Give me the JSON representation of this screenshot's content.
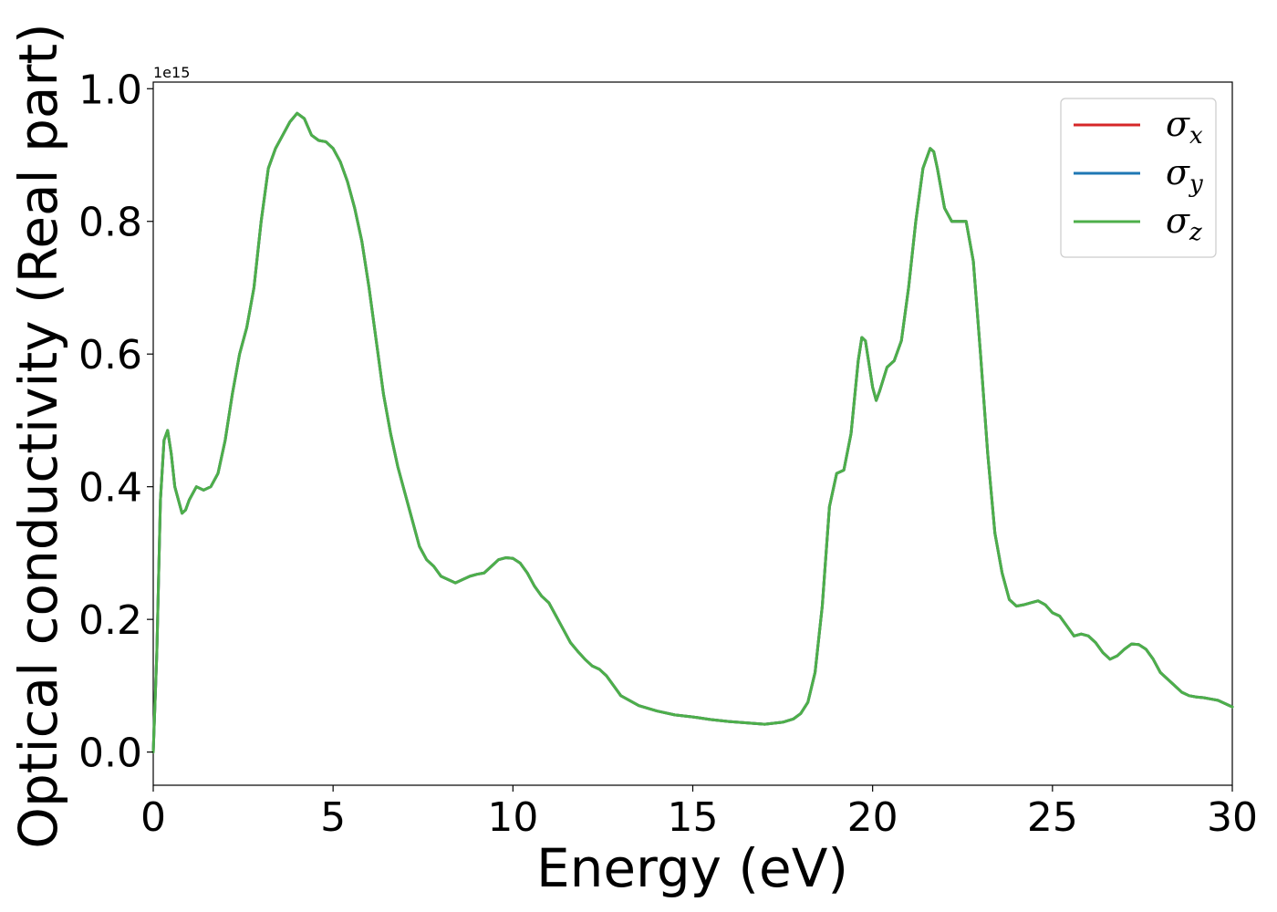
{
  "chart_data": {
    "type": "line",
    "xlabel": "Energy (eV)",
    "ylabel": "Optical conductivity (Real part)",
    "y_offset_label": "1e15",
    "xlim": [
      0,
      30
    ],
    "ylim": [
      -0.05,
      1.01
    ],
    "x_ticks": [
      0,
      5,
      10,
      15,
      20,
      25,
      30
    ],
    "x_tick_labels": [
      "0",
      "5",
      "10",
      "15",
      "20",
      "25",
      "30"
    ],
    "y_ticks": [
      0.0,
      0.2,
      0.4,
      0.6,
      0.8,
      1.0
    ],
    "y_tick_labels": [
      "0.0",
      "0.2",
      "0.4",
      "0.6",
      "0.8",
      "1.0"
    ],
    "grid": false,
    "legend_position": "top-right",
    "x": [
      0,
      0.1,
      0.2,
      0.3,
      0.4,
      0.5,
      0.6,
      0.8,
      0.9,
      1.0,
      1.2,
      1.4,
      1.6,
      1.8,
      2.0,
      2.2,
      2.4,
      2.6,
      2.8,
      3.0,
      3.2,
      3.4,
      3.6,
      3.8,
      4.0,
      4.2,
      4.4,
      4.6,
      4.8,
      5.0,
      5.2,
      5.4,
      5.6,
      5.8,
      6.0,
      6.2,
      6.4,
      6.6,
      6.8,
      7.0,
      7.2,
      7.4,
      7.6,
      7.8,
      8.0,
      8.2,
      8.4,
      8.6,
      8.8,
      9.0,
      9.2,
      9.4,
      9.6,
      9.8,
      10.0,
      10.2,
      10.4,
      10.6,
      10.8,
      11.0,
      11.2,
      11.4,
      11.6,
      11.8,
      12.0,
      12.2,
      12.4,
      12.6,
      12.8,
      13.0,
      13.5,
      14.0,
      14.5,
      15.0,
      15.5,
      16.0,
      16.5,
      17.0,
      17.5,
      17.8,
      18.0,
      18.2,
      18.4,
      18.6,
      18.8,
      19.0,
      19.2,
      19.4,
      19.6,
      19.7,
      19.8,
      20.0,
      20.1,
      20.2,
      20.4,
      20.6,
      20.8,
      21.0,
      21.2,
      21.4,
      21.6,
      21.7,
      21.8,
      22.0,
      22.2,
      22.4,
      22.6,
      22.8,
      23.0,
      23.2,
      23.4,
      23.6,
      23.8,
      24.0,
      24.2,
      24.4,
      24.6,
      24.8,
      25.0,
      25.2,
      25.4,
      25.6,
      25.8,
      26.0,
      26.2,
      26.4,
      26.6,
      26.8,
      27.0,
      27.2,
      27.4,
      27.6,
      27.8,
      28.0,
      28.2,
      28.4,
      28.6,
      28.8,
      29.0,
      29.2,
      29.4,
      29.6,
      29.8,
      30.0
    ],
    "series": [
      {
        "name": "σx",
        "color": "#d62728",
        "values": [
          0.0,
          0.15,
          0.38,
          0.47,
          0.485,
          0.45,
          0.4,
          0.36,
          0.365,
          0.38,
          0.4,
          0.395,
          0.4,
          0.42,
          0.47,
          0.54,
          0.6,
          0.64,
          0.7,
          0.8,
          0.88,
          0.91,
          0.93,
          0.95,
          0.963,
          0.955,
          0.93,
          0.922,
          0.92,
          0.91,
          0.89,
          0.86,
          0.82,
          0.77,
          0.7,
          0.62,
          0.54,
          0.48,
          0.43,
          0.39,
          0.35,
          0.31,
          0.29,
          0.28,
          0.265,
          0.26,
          0.255,
          0.26,
          0.265,
          0.268,
          0.27,
          0.28,
          0.29,
          0.293,
          0.292,
          0.285,
          0.27,
          0.25,
          0.235,
          0.225,
          0.205,
          0.185,
          0.165,
          0.152,
          0.14,
          0.13,
          0.125,
          0.115,
          0.1,
          0.085,
          0.07,
          0.062,
          0.056,
          0.053,
          0.049,
          0.046,
          0.044,
          0.042,
          0.045,
          0.05,
          0.058,
          0.075,
          0.12,
          0.22,
          0.37,
          0.42,
          0.425,
          0.48,
          0.59,
          0.625,
          0.62,
          0.55,
          0.53,
          0.545,
          0.58,
          0.59,
          0.62,
          0.7,
          0.8,
          0.88,
          0.91,
          0.905,
          0.88,
          0.82,
          0.8,
          0.8,
          0.8,
          0.74,
          0.6,
          0.45,
          0.33,
          0.27,
          0.23,
          0.22,
          0.222,
          0.225,
          0.228,
          0.222,
          0.21,
          0.205,
          0.19,
          0.175,
          0.178,
          0.175,
          0.165,
          0.15,
          0.14,
          0.145,
          0.155,
          0.163,
          0.162,
          0.155,
          0.14,
          0.12,
          0.11,
          0.1,
          0.09,
          0.085,
          0.083,
          0.082,
          0.08,
          0.078,
          0.073,
          0.068
        ]
      },
      {
        "name": "σy",
        "color": "#1f77b4",
        "values": [
          0.0,
          0.15,
          0.38,
          0.47,
          0.485,
          0.45,
          0.4,
          0.36,
          0.365,
          0.38,
          0.4,
          0.395,
          0.4,
          0.42,
          0.47,
          0.54,
          0.6,
          0.64,
          0.7,
          0.8,
          0.88,
          0.91,
          0.93,
          0.95,
          0.963,
          0.955,
          0.93,
          0.922,
          0.92,
          0.91,
          0.89,
          0.86,
          0.82,
          0.77,
          0.7,
          0.62,
          0.54,
          0.48,
          0.43,
          0.39,
          0.35,
          0.31,
          0.29,
          0.28,
          0.265,
          0.26,
          0.255,
          0.26,
          0.265,
          0.268,
          0.27,
          0.28,
          0.29,
          0.293,
          0.292,
          0.285,
          0.27,
          0.25,
          0.235,
          0.225,
          0.205,
          0.185,
          0.165,
          0.152,
          0.14,
          0.13,
          0.125,
          0.115,
          0.1,
          0.085,
          0.07,
          0.062,
          0.056,
          0.053,
          0.049,
          0.046,
          0.044,
          0.042,
          0.045,
          0.05,
          0.058,
          0.075,
          0.12,
          0.22,
          0.37,
          0.42,
          0.425,
          0.48,
          0.59,
          0.625,
          0.62,
          0.55,
          0.53,
          0.545,
          0.58,
          0.59,
          0.62,
          0.7,
          0.8,
          0.88,
          0.91,
          0.905,
          0.88,
          0.82,
          0.8,
          0.8,
          0.8,
          0.74,
          0.6,
          0.45,
          0.33,
          0.27,
          0.23,
          0.22,
          0.222,
          0.225,
          0.228,
          0.222,
          0.21,
          0.205,
          0.19,
          0.175,
          0.178,
          0.175,
          0.165,
          0.15,
          0.14,
          0.145,
          0.155,
          0.163,
          0.162,
          0.155,
          0.14,
          0.12,
          0.11,
          0.1,
          0.09,
          0.085,
          0.083,
          0.082,
          0.08,
          0.078,
          0.073,
          0.068
        ]
      },
      {
        "name": "σz",
        "color": "#4daf4a",
        "values": [
          0.0,
          0.15,
          0.38,
          0.47,
          0.485,
          0.45,
          0.4,
          0.36,
          0.365,
          0.38,
          0.4,
          0.395,
          0.4,
          0.42,
          0.47,
          0.54,
          0.6,
          0.64,
          0.7,
          0.8,
          0.88,
          0.91,
          0.93,
          0.95,
          0.963,
          0.955,
          0.93,
          0.922,
          0.92,
          0.91,
          0.89,
          0.86,
          0.82,
          0.77,
          0.7,
          0.62,
          0.54,
          0.48,
          0.43,
          0.39,
          0.35,
          0.31,
          0.29,
          0.28,
          0.265,
          0.26,
          0.255,
          0.26,
          0.265,
          0.268,
          0.27,
          0.28,
          0.29,
          0.293,
          0.292,
          0.285,
          0.27,
          0.25,
          0.235,
          0.225,
          0.205,
          0.185,
          0.165,
          0.152,
          0.14,
          0.13,
          0.125,
          0.115,
          0.1,
          0.085,
          0.07,
          0.062,
          0.056,
          0.053,
          0.049,
          0.046,
          0.044,
          0.042,
          0.045,
          0.05,
          0.058,
          0.075,
          0.12,
          0.22,
          0.37,
          0.42,
          0.425,
          0.48,
          0.59,
          0.625,
          0.62,
          0.55,
          0.53,
          0.545,
          0.58,
          0.59,
          0.62,
          0.7,
          0.8,
          0.88,
          0.91,
          0.905,
          0.88,
          0.82,
          0.8,
          0.8,
          0.8,
          0.74,
          0.6,
          0.45,
          0.33,
          0.27,
          0.23,
          0.22,
          0.222,
          0.225,
          0.228,
          0.222,
          0.21,
          0.205,
          0.19,
          0.175,
          0.178,
          0.175,
          0.165,
          0.15,
          0.14,
          0.145,
          0.155,
          0.163,
          0.162,
          0.155,
          0.14,
          0.12,
          0.11,
          0.1,
          0.09,
          0.085,
          0.083,
          0.082,
          0.08,
          0.078,
          0.073,
          0.068
        ]
      }
    ],
    "legend": [
      {
        "symbol": "σ",
        "sub": "x",
        "color": "#d62728"
      },
      {
        "symbol": "σ",
        "sub": "y",
        "color": "#1f77b4"
      },
      {
        "symbol": "σ",
        "sub": "z",
        "color": "#4daf4a"
      }
    ]
  }
}
